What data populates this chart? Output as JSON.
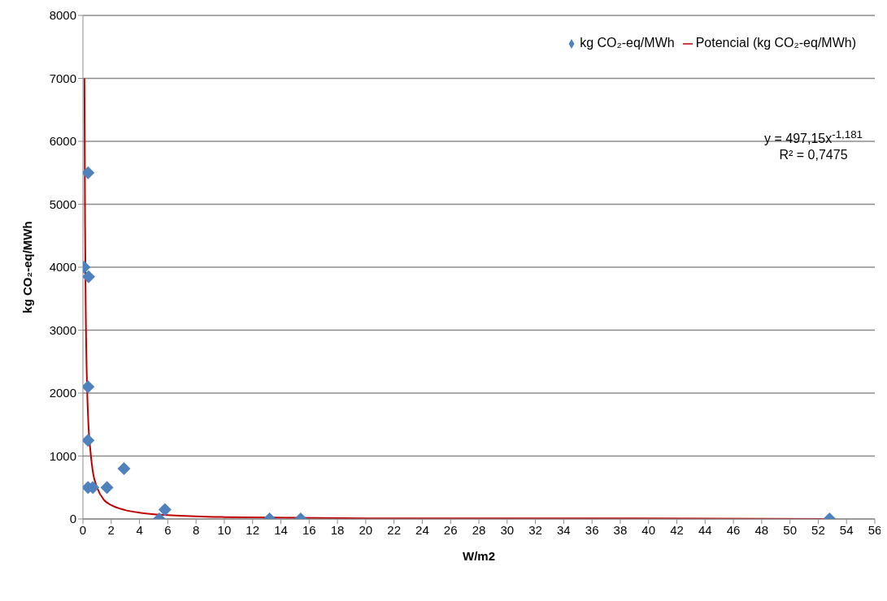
{
  "chart_data": {
    "type": "scatter",
    "xlabel": "W/m2",
    "ylabel": "kg CO₂-eq/MWh",
    "xlim": [
      0,
      56
    ],
    "xticks": [
      0,
      2,
      4,
      6,
      8,
      10,
      12,
      14,
      16,
      18,
      20,
      22,
      24,
      26,
      28,
      30,
      32,
      34,
      36,
      38,
      40,
      42,
      44,
      46,
      48,
      50,
      52,
      54,
      56
    ],
    "ylim": [
      0,
      8000
    ],
    "yticks": [
      0,
      1000,
      2000,
      3000,
      4000,
      5000,
      6000,
      7000,
      8000
    ],
    "grid": "y",
    "legend": "top right",
    "marker": "diamond",
    "series": [
      {
        "name": "kg CO₂-eq/MWh",
        "color": "#4f81bd",
        "x": [
          0.36,
          0.08,
          0.4,
          0.36,
          0.36,
          0.36,
          0.7,
          1.7,
          2.9,
          5.4,
          5.8,
          13.2,
          15.4,
          52.8
        ],
        "values": [
          5500,
          4000,
          3850,
          2100,
          1250,
          500,
          500,
          500,
          800,
          0,
          150,
          0,
          0,
          0
        ]
      },
      {
        "name": "Potencial (kg CO₂-eq/MWh)",
        "color": "#c00000",
        "type": "line",
        "marker": "none",
        "line_style": "solid",
        "x": [
          0.106,
          0.15,
          0.2,
          0.3,
          0.4,
          0.5,
          0.7,
          1,
          1.5,
          2,
          3,
          4,
          6,
          10,
          20,
          35,
          52.85
        ],
        "values": [
          7000,
          4700,
          3300,
          2050,
          1450,
          1150,
          750,
          500,
          300,
          220,
          140,
          100,
          60,
          30,
          10,
          10,
          0
        ]
      }
    ],
    "annotations": [
      "y = 497,15x$^{-1,181}$",
      "R² = 0,7475"
    ]
  }
}
